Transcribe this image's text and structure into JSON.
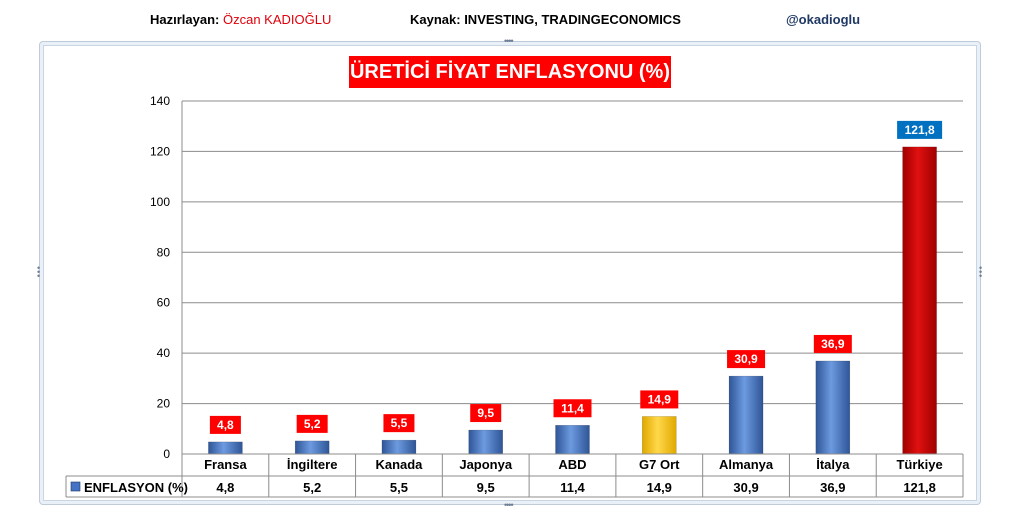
{
  "header": {
    "prepared_label": "Hazırlayan:",
    "prepared_name": "Özcan KADIOĞLU",
    "source": "Kaynak: INVESTING, TRADINGECONOMICS",
    "handle": "@okadioglu"
  },
  "chart_data": {
    "type": "bar",
    "title": "ÜRETİCİ FİYAT ENFLASYONU (%)",
    "xlabel": "",
    "ylabel": "",
    "ylim": [
      0,
      140
    ],
    "yticks": [
      0,
      20,
      40,
      60,
      80,
      100,
      120,
      140
    ],
    "grid": true,
    "categories": [
      "Fransa",
      "İngiltere",
      "Kanada",
      "Japonya",
      "ABD",
      "G7 Ort",
      "Almanya",
      "İtalya",
      "Türkiye"
    ],
    "series": [
      {
        "name": "ENFLASYON (%)",
        "values": [
          4.8,
          5.2,
          5.5,
          9.5,
          11.4,
          14.9,
          30.9,
          36.9,
          121.8
        ],
        "labels": [
          "4,8",
          "5,2",
          "5,5",
          "9,5",
          "11,4",
          "14,9",
          "30,9",
          "36,9",
          "121,8"
        ]
      }
    ],
    "data_table": true,
    "colors": {
      "default_bar": "#4472c4",
      "highlight_g7": "#ffc000",
      "highlight_turkey": "#c00000",
      "label_bg_default": "#ff0000",
      "label_bg_turkey": "#0070c0"
    }
  }
}
